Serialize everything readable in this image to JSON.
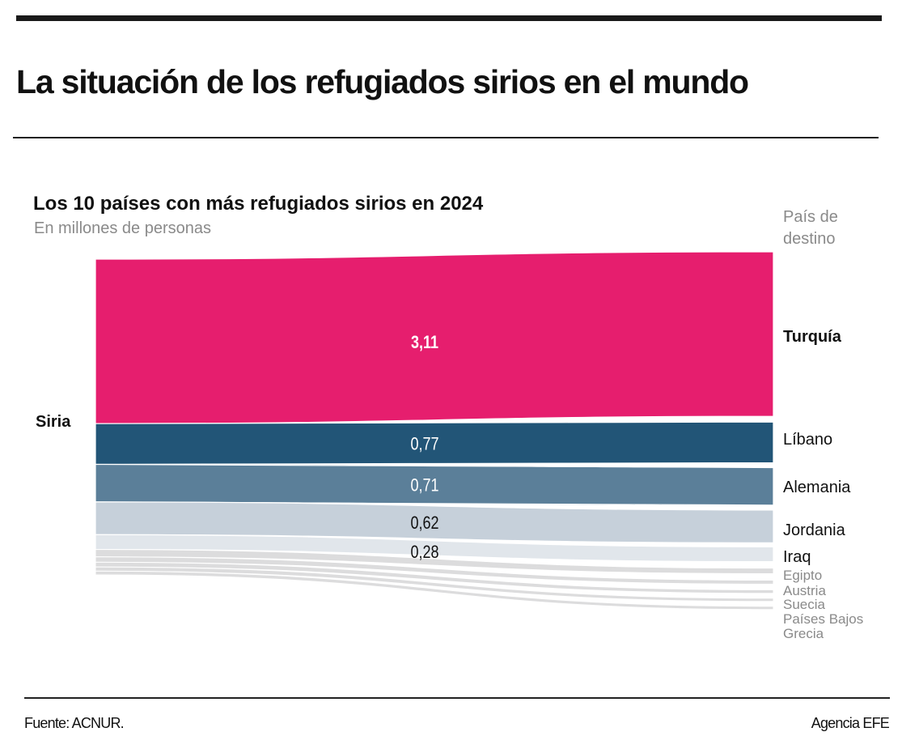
{
  "header": {
    "title": "La situación de los refugiados sirios en el mundo"
  },
  "footer": {
    "source": "Fuente: ACNUR.",
    "agency": "Agencia EFE"
  },
  "chart_data": {
    "type": "sankey",
    "title": "Los 10 países con más refugiados sirios en 2024",
    "subtitle": "En millones de personas",
    "destination_header": "País de destino",
    "source": "Siria",
    "unit": "millones de personas",
    "flows": [
      {
        "target": "Turquía",
        "value": 3.11,
        "value_label": "3,11",
        "color": "#e61e6e",
        "label_color": "#ffffff",
        "target_bold": true,
        "target_color": "#111111"
      },
      {
        "target": "Líbano",
        "value": 0.77,
        "value_label": "0,77",
        "color": "#225577",
        "label_color": "#ffffff",
        "target_bold": false,
        "target_color": "#111111"
      },
      {
        "target": "Alemania",
        "value": 0.71,
        "value_label": "0,71",
        "color": "#5b7f99",
        "label_color": "#ffffff",
        "target_bold": false,
        "target_color": "#111111"
      },
      {
        "target": "Jordania",
        "value": 0.62,
        "value_label": "0,62",
        "color": "#c6d0da",
        "label_color": "#111111",
        "target_bold": false,
        "target_color": "#111111"
      },
      {
        "target": "Iraq",
        "value": 0.28,
        "value_label": "0,28",
        "color": "#e1e6eb",
        "label_color": "#111111",
        "target_bold": false,
        "target_color": "#111111"
      },
      {
        "target": "Egipto",
        "value": 0.14,
        "value_label": "",
        "color": "#dcdcdd",
        "label_color": "",
        "target_bold": false,
        "target_color": "#8a8a8a"
      },
      {
        "target": "Austria",
        "value": 0.1,
        "value_label": "",
        "color": "#dcdcdd",
        "label_color": "",
        "target_bold": false,
        "target_color": "#8a8a8a"
      },
      {
        "target": "Suecia",
        "value": 0.09,
        "value_label": "",
        "color": "#dcdcdd",
        "label_color": "",
        "target_bold": false,
        "target_color": "#8a8a8a"
      },
      {
        "target": "Países Bajos",
        "value": 0.08,
        "value_label": "",
        "color": "#dcdcdd",
        "label_color": "",
        "target_bold": false,
        "target_color": "#8a8a8a"
      },
      {
        "target": "Grecia",
        "value": 0.07,
        "value_label": "",
        "color": "#dcdcdd",
        "label_color": "",
        "target_bold": false,
        "target_color": "#8a8a8a"
      }
    ]
  }
}
